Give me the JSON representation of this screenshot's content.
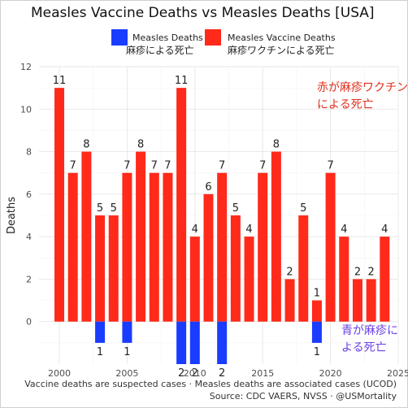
{
  "chart_data": {
    "type": "bar",
    "title": "Measles Vaccine Deaths vs Measles Deaths [USA]",
    "xlabel": "",
    "ylabel": "Deaths",
    "xlim": [
      1998.5,
      2025
    ],
    "ylim": [
      -2,
      12
    ],
    "x_ticks": [
      2000,
      2005,
      2010,
      2015,
      2020,
      2025
    ],
    "y_ticks": [
      0,
      2,
      4,
      6,
      8,
      10,
      12
    ],
    "grid": true,
    "legend_position": "top",
    "years": [
      2000,
      2001,
      2002,
      2003,
      2004,
      2005,
      2006,
      2007,
      2008,
      2009,
      2010,
      2011,
      2012,
      2013,
      2014,
      2015,
      2016,
      2017,
      2018,
      2019,
      2020,
      2021,
      2022,
      2023,
      2024
    ],
    "series": [
      {
        "name": "Measles Vaccine Deaths",
        "name_ja": "麻疹ワクチンによる死亡",
        "color": "#ff2a1a",
        "values": [
          11,
          7,
          8,
          5,
          5,
          7,
          8,
          7,
          7,
          11,
          4,
          6,
          7,
          5,
          4,
          7,
          8,
          2,
          5,
          1,
          7,
          4,
          2,
          2,
          4
        ]
      },
      {
        "name": "Measles Deaths",
        "name_ja": "麻疹による死亡",
        "color": "#1a3cff",
        "values": [
          0,
          0,
          0,
          1,
          0,
          1,
          0,
          0,
          0,
          2,
          2,
          0,
          2,
          0,
          0,
          0,
          0,
          0,
          0,
          1,
          0,
          0,
          0,
          0,
          0
        ]
      }
    ]
  },
  "annotations": {
    "red_line1": "赤が麻疹ワクチン",
    "red_line2": "による死亡",
    "blue_line1": "青が麻疹に",
    "blue_line2": "よる死亡"
  },
  "caption": {
    "line1": "Vaccine deaths are suspected cases · Measles deaths are associated cases (UCOD)",
    "line2": "Source: CDC VAERS, NVSS · @USMortality"
  }
}
